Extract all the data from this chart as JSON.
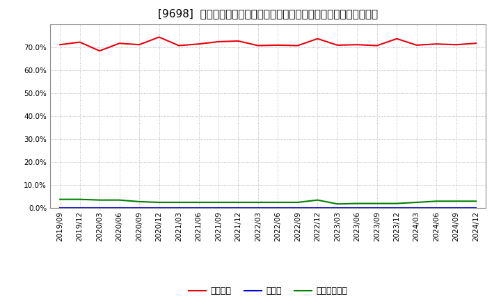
{
  "title": "[9698]  自己資本、のれん、繰延税金資産の総資産に対する比率の推移",
  "x_labels": [
    "2019/09",
    "2019/12",
    "2020/03",
    "2020/06",
    "2020/09",
    "2020/12",
    "2021/03",
    "2021/06",
    "2021/09",
    "2021/12",
    "2022/03",
    "2022/06",
    "2022/09",
    "2022/12",
    "2023/03",
    "2023/06",
    "2023/09",
    "2023/12",
    "2024/03",
    "2024/06",
    "2024/09",
    "2024/12"
  ],
  "jikoshihon": [
    71.2,
    72.3,
    68.5,
    71.8,
    71.2,
    74.5,
    70.8,
    71.5,
    72.5,
    72.8,
    70.8,
    71.0,
    70.8,
    73.8,
    71.0,
    71.2,
    70.8,
    73.8,
    71.0,
    71.5,
    71.2,
    71.8
  ],
  "noren": [
    0.0,
    0.0,
    0.0,
    0.0,
    0.0,
    0.0,
    0.0,
    0.0,
    0.0,
    0.0,
    0.0,
    0.0,
    0.0,
    0.0,
    0.0,
    0.0,
    0.0,
    0.0,
    0.0,
    0.0,
    0.0,
    0.0
  ],
  "kurinobe": [
    3.8,
    3.8,
    3.5,
    3.5,
    2.8,
    2.5,
    2.5,
    2.5,
    2.5,
    2.5,
    2.5,
    2.5,
    2.5,
    3.5,
    1.8,
    2.0,
    2.0,
    2.0,
    2.5,
    3.0,
    3.0,
    3.0
  ],
  "jikoshihon_color": "#e8000d",
  "noren_color": "#0000cd",
  "kurinobe_color": "#008000",
  "background_color": "#ffffff",
  "grid_color": "#aaaaaa",
  "ylim": [
    0.0,
    80.0
  ],
  "yticks": [
    0.0,
    10.0,
    20.0,
    30.0,
    40.0,
    50.0,
    60.0,
    70.0
  ],
  "legend_labels": [
    "自己資本",
    "のれん",
    "繰延税金資産"
  ],
  "title_fontsize": 11,
  "tick_fontsize": 7.5,
  "legend_fontsize": 9
}
